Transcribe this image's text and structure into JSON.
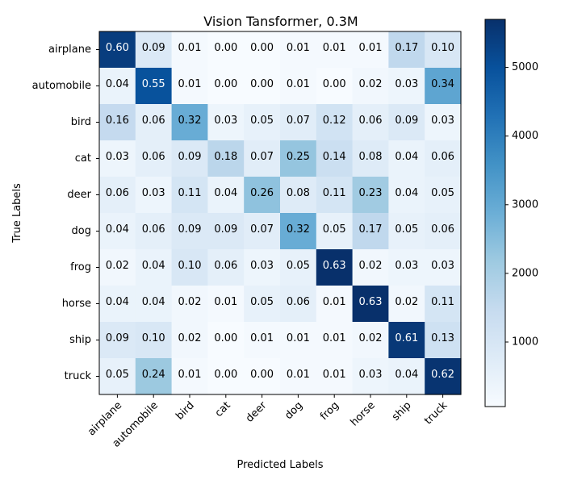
{
  "chart_data": {
    "type": "heatmap",
    "title": "Vision Tansformer, 0.3M",
    "xlabel": "Predicted Labels",
    "ylabel": "True Labels",
    "categories_x": [
      "airplane",
      "automobile",
      "bird",
      "cat",
      "deer",
      "dog",
      "frog",
      "horse",
      "ship",
      "truck"
    ],
    "categories_y": [
      "airplane",
      "automobile",
      "bird",
      "cat",
      "deer",
      "dog",
      "frog",
      "horse",
      "ship",
      "truck"
    ],
    "values": [
      [
        0.6,
        0.09,
        0.01,
        0.0,
        0.0,
        0.01,
        0.01,
        0.01,
        0.17,
        0.1
      ],
      [
        0.04,
        0.55,
        0.01,
        0.0,
        0.0,
        0.01,
        0.0,
        0.02,
        0.03,
        0.34
      ],
      [
        0.16,
        0.06,
        0.32,
        0.03,
        0.05,
        0.07,
        0.12,
        0.06,
        0.09,
        0.03
      ],
      [
        0.03,
        0.06,
        0.09,
        0.18,
        0.07,
        0.25,
        0.14,
        0.08,
        0.04,
        0.06
      ],
      [
        0.06,
        0.03,
        0.11,
        0.04,
        0.26,
        0.08,
        0.11,
        0.23,
        0.04,
        0.05
      ],
      [
        0.04,
        0.06,
        0.09,
        0.09,
        0.07,
        0.32,
        0.05,
        0.17,
        0.05,
        0.06
      ],
      [
        0.02,
        0.04,
        0.1,
        0.06,
        0.03,
        0.05,
        0.63,
        0.02,
        0.03,
        0.03
      ],
      [
        0.04,
        0.04,
        0.02,
        0.01,
        0.05,
        0.06,
        0.01,
        0.63,
        0.02,
        0.11
      ],
      [
        0.09,
        0.1,
        0.02,
        0.0,
        0.01,
        0.01,
        0.01,
        0.02,
        0.61,
        0.13
      ],
      [
        0.05,
        0.24,
        0.01,
        0.0,
        0.0,
        0.01,
        0.01,
        0.03,
        0.04,
        0.62
      ]
    ],
    "colorbar": {
      "colormap": "Blues",
      "range": [
        60,
        5700
      ],
      "ticks": [
        1000,
        2000,
        3000,
        4000,
        5000
      ]
    }
  }
}
